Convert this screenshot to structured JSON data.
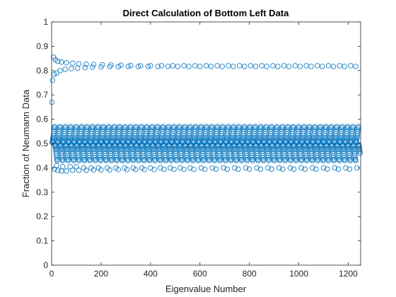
{
  "chart_data": {
    "type": "scatter",
    "title": "Direct Calculation of Bottom Left Data",
    "xlabel": "Eigenvalue Number",
    "ylabel": "Fraction of Neumann Data",
    "xlim": [
      0,
      1250
    ],
    "ylim": [
      0,
      1
    ],
    "xticks": [
      0,
      200,
      400,
      600,
      800,
      1000,
      1200
    ],
    "yticks": [
      0,
      0.1,
      0.2,
      0.3,
      0.4,
      0.5,
      0.6,
      0.7,
      0.8,
      0.9,
      1
    ],
    "xtick_labels": [
      "0",
      "200",
      "400",
      "600",
      "800",
      "1000",
      "1200"
    ],
    "ytick_labels": [
      "0",
      "0.1",
      "0.2",
      "0.3",
      "0.4",
      "0.5",
      "0.6",
      "0.7",
      "0.8",
      "0.9",
      "1"
    ],
    "marker": "open-circle",
    "marker_color": "#0072BD",
    "grid": false,
    "series": [
      {
        "points": [
          [
            1,
            0.67
          ],
          [
            4,
            0.76
          ],
          [
            8,
            0.855
          ],
          [
            15,
            0.845
          ],
          [
            25,
            0.838
          ],
          [
            40,
            0.835
          ],
          [
            60,
            0.832
          ],
          [
            85,
            0.83
          ],
          [
            110,
            0.828
          ],
          [
            140,
            0.826
          ],
          [
            170,
            0.825
          ],
          [
            205,
            0.824
          ],
          [
            240,
            0.823
          ],
          [
            280,
            0.822
          ],
          [
            320,
            0.821
          ],
          [
            360,
            0.82
          ],
          [
            400,
            0.82
          ],
          [
            445,
            0.82
          ],
          [
            490,
            0.82
          ],
          [
            535,
            0.82
          ],
          [
            580,
            0.82
          ],
          [
            625,
            0.82
          ],
          [
            670,
            0.82
          ],
          [
            715,
            0.82
          ],
          [
            760,
            0.82
          ],
          [
            805,
            0.82
          ],
          [
            850,
            0.82
          ],
          [
            895,
            0.82
          ],
          [
            940,
            0.82
          ],
          [
            985,
            0.82
          ],
          [
            1030,
            0.82
          ],
          [
            1075,
            0.82
          ],
          [
            1120,
            0.82
          ],
          [
            1165,
            0.82
          ],
          [
            1210,
            0.82
          ],
          [
            10,
            0.785
          ],
          [
            20,
            0.79
          ],
          [
            35,
            0.8
          ],
          [
            55,
            0.805
          ],
          [
            80,
            0.808
          ],
          [
            105,
            0.81
          ],
          [
            135,
            0.812
          ],
          [
            165,
            0.814
          ],
          [
            200,
            0.815
          ],
          [
            235,
            0.816
          ],
          [
            270,
            0.816
          ],
          [
            310,
            0.817
          ],
          [
            350,
            0.817
          ],
          [
            390,
            0.817
          ],
          [
            430,
            0.817
          ],
          [
            470,
            0.817
          ],
          [
            510,
            0.817
          ],
          [
            555,
            0.817
          ],
          [
            600,
            0.817
          ],
          [
            645,
            0.817
          ],
          [
            690,
            0.817
          ],
          [
            735,
            0.817
          ],
          [
            780,
            0.817
          ],
          [
            825,
            0.817
          ],
          [
            870,
            0.817
          ],
          [
            915,
            0.817
          ],
          [
            960,
            0.817
          ],
          [
            1005,
            0.817
          ],
          [
            1050,
            0.817
          ],
          [
            1095,
            0.817
          ],
          [
            1140,
            0.817
          ],
          [
            1185,
            0.817
          ],
          [
            1230,
            0.817
          ],
          [
            12,
            0.395
          ],
          [
            25,
            0.39
          ],
          [
            40,
            0.387
          ],
          [
            60,
            0.387
          ],
          [
            85,
            0.39
          ],
          [
            110,
            0.39
          ],
          [
            140,
            0.39
          ],
          [
            170,
            0.392
          ],
          [
            200,
            0.392
          ],
          [
            235,
            0.392
          ],
          [
            270,
            0.393
          ],
          [
            305,
            0.393
          ],
          [
            340,
            0.393
          ],
          [
            375,
            0.393
          ],
          [
            415,
            0.393
          ],
          [
            455,
            0.394
          ],
          [
            495,
            0.394
          ],
          [
            535,
            0.394
          ],
          [
            575,
            0.394
          ],
          [
            620,
            0.394
          ],
          [
            665,
            0.395
          ],
          [
            710,
            0.395
          ],
          [
            755,
            0.395
          ],
          [
            800,
            0.395
          ],
          [
            845,
            0.395
          ],
          [
            890,
            0.395
          ],
          [
            935,
            0.395
          ],
          [
            980,
            0.395
          ],
          [
            1025,
            0.395
          ],
          [
            1070,
            0.395
          ],
          [
            1115,
            0.395
          ],
          [
            1160,
            0.395
          ],
          [
            1205,
            0.395
          ],
          [
            20,
            0.41
          ],
          [
            45,
            0.405
          ],
          [
            75,
            0.405
          ],
          [
            100,
            0.405
          ],
          [
            130,
            0.4
          ],
          [
            160,
            0.4
          ],
          [
            190,
            0.4
          ],
          [
            225,
            0.4
          ],
          [
            260,
            0.4
          ],
          [
            295,
            0.4
          ],
          [
            330,
            0.4
          ],
          [
            365,
            0.4
          ],
          [
            400,
            0.4
          ],
          [
            440,
            0.4
          ],
          [
            480,
            0.4
          ],
          [
            520,
            0.4
          ],
          [
            560,
            0.4
          ],
          [
            605,
            0.4
          ],
          [
            650,
            0.4
          ],
          [
            695,
            0.4
          ],
          [
            740,
            0.4
          ],
          [
            785,
            0.4
          ],
          [
            830,
            0.4
          ],
          [
            875,
            0.4
          ],
          [
            920,
            0.4
          ],
          [
            965,
            0.4
          ],
          [
            1010,
            0.4
          ],
          [
            1055,
            0.4
          ],
          [
            1100,
            0.4
          ],
          [
            1145,
            0.4
          ],
          [
            1190,
            0.4
          ],
          [
            1235,
            0.4
          ]
        ],
        "band": {
          "x_from": 2,
          "x_to": 1248,
          "count": 1250,
          "center": 0.5,
          "amplitudes": [
            0.004,
            0.008,
            0.012,
            0.018,
            0.025,
            0.032,
            0.04,
            0.05,
            0.058,
            0.065,
            0.07
          ]
        }
      }
    ]
  }
}
